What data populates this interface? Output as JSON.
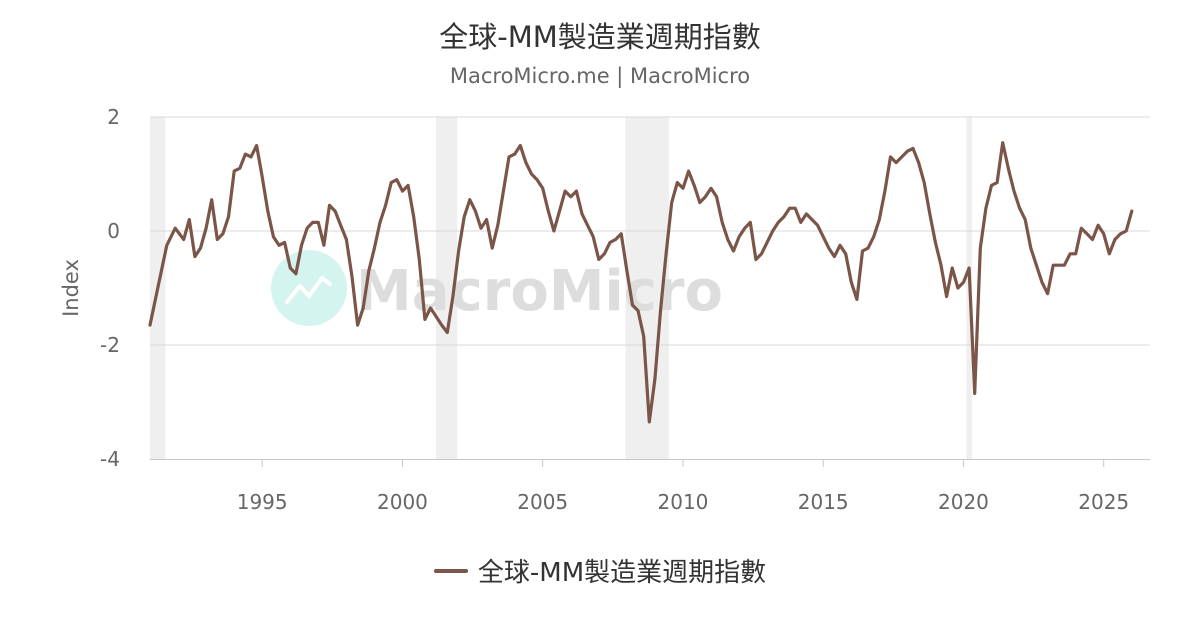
{
  "header": {
    "title": "全球-MM製造業週期指數",
    "subtitle": "MacroMicro.me | MacroMicro"
  },
  "watermark": {
    "text": "MacroMicro",
    "icon": "chart-logo-icon"
  },
  "legend": {
    "label": "全球-MM製造業週期指數"
  },
  "colors": {
    "line": "#7a5548",
    "recession": "#efefef",
    "grid": "#d8d8d8",
    "logo": "#d4f4ef"
  },
  "chart_data": {
    "type": "line",
    "title": "全球-MM製造業週期指數",
    "subtitle": "MacroMicro.me | MacroMicro",
    "ylabel": "Index",
    "xlabel": "",
    "ylim": [
      -4,
      2
    ],
    "yticks": [
      "2",
      "0",
      "-2",
      "-4"
    ],
    "xticks": [
      "1995",
      "2000",
      "2005",
      "2010",
      "2015",
      "2020",
      "2025"
    ],
    "grid": true,
    "legend_position": "bottom",
    "recession_bands": [
      [
        1991.0,
        1991.55
      ],
      [
        2001.2,
        2001.95
      ],
      [
        2007.95,
        2009.5
      ],
      [
        2020.1,
        2020.3
      ]
    ],
    "series": [
      {
        "name": "全球-MM製造業週期指數",
        "points": [
          [
            1991.0,
            -1.65
          ],
          [
            1991.3,
            -0.95
          ],
          [
            1991.6,
            -0.25
          ],
          [
            1991.9,
            0.05
          ],
          [
            1992.2,
            -0.15
          ],
          [
            1992.4,
            0.2
          ],
          [
            1992.6,
            -0.45
          ],
          [
            1992.8,
            -0.3
          ],
          [
            1993.0,
            0.05
          ],
          [
            1993.2,
            0.55
          ],
          [
            1993.4,
            -0.15
          ],
          [
            1993.6,
            -0.05
          ],
          [
            1993.8,
            0.25
          ],
          [
            1994.0,
            1.05
          ],
          [
            1994.2,
            1.1
          ],
          [
            1994.4,
            1.35
          ],
          [
            1994.6,
            1.3
          ],
          [
            1994.8,
            1.5
          ],
          [
            1995.0,
            0.95
          ],
          [
            1995.2,
            0.35
          ],
          [
            1995.4,
            -0.1
          ],
          [
            1995.6,
            -0.25
          ],
          [
            1995.8,
            -0.2
          ],
          [
            1996.0,
            -0.65
          ],
          [
            1996.2,
            -0.75
          ],
          [
            1996.4,
            -0.25
          ],
          [
            1996.6,
            0.05
          ],
          [
            1996.8,
            0.15
          ],
          [
            1997.0,
            0.15
          ],
          [
            1997.2,
            -0.25
          ],
          [
            1997.4,
            0.45
          ],
          [
            1997.6,
            0.35
          ],
          [
            1997.8,
            0.1
          ],
          [
            1998.0,
            -0.15
          ],
          [
            1998.2,
            -0.8
          ],
          [
            1998.4,
            -1.65
          ],
          [
            1998.6,
            -1.35
          ],
          [
            1998.8,
            -0.7
          ],
          [
            1999.0,
            -0.3
          ],
          [
            1999.2,
            0.15
          ],
          [
            1999.4,
            0.45
          ],
          [
            1999.6,
            0.85
          ],
          [
            1999.8,
            0.9
          ],
          [
            2000.0,
            0.7
          ],
          [
            2000.2,
            0.8
          ],
          [
            2000.4,
            0.25
          ],
          [
            2000.6,
            -0.5
          ],
          [
            2000.8,
            -1.55
          ],
          [
            2001.0,
            -1.35
          ],
          [
            2001.2,
            -1.5
          ],
          [
            2001.4,
            -1.65
          ],
          [
            2001.6,
            -1.78
          ],
          [
            2001.8,
            -1.15
          ],
          [
            2002.0,
            -0.35
          ],
          [
            2002.2,
            0.25
          ],
          [
            2002.4,
            0.55
          ],
          [
            2002.6,
            0.35
          ],
          [
            2002.8,
            0.05
          ],
          [
            2003.0,
            0.2
          ],
          [
            2003.2,
            -0.3
          ],
          [
            2003.4,
            0.1
          ],
          [
            2003.6,
            0.7
          ],
          [
            2003.8,
            1.3
          ],
          [
            2004.0,
            1.35
          ],
          [
            2004.2,
            1.5
          ],
          [
            2004.4,
            1.2
          ],
          [
            2004.6,
            1.0
          ],
          [
            2004.8,
            0.9
          ],
          [
            2005.0,
            0.75
          ],
          [
            2005.2,
            0.35
          ],
          [
            2005.4,
            0.0
          ],
          [
            2005.6,
            0.35
          ],
          [
            2005.8,
            0.7
          ],
          [
            2006.0,
            0.6
          ],
          [
            2006.2,
            0.7
          ],
          [
            2006.4,
            0.3
          ],
          [
            2006.6,
            0.1
          ],
          [
            2006.8,
            -0.1
          ],
          [
            2007.0,
            -0.5
          ],
          [
            2007.2,
            -0.4
          ],
          [
            2007.4,
            -0.2
          ],
          [
            2007.6,
            -0.15
          ],
          [
            2007.8,
            -0.05
          ],
          [
            2008.0,
            -0.7
          ],
          [
            2008.2,
            -1.3
          ],
          [
            2008.4,
            -1.4
          ],
          [
            2008.6,
            -1.85
          ],
          [
            2008.8,
            -3.35
          ],
          [
            2009.0,
            -2.6
          ],
          [
            2009.2,
            -1.4
          ],
          [
            2009.4,
            -0.4
          ],
          [
            2009.6,
            0.5
          ],
          [
            2009.8,
            0.85
          ],
          [
            2010.0,
            0.75
          ],
          [
            2010.2,
            1.05
          ],
          [
            2010.4,
            0.8
          ],
          [
            2010.6,
            0.5
          ],
          [
            2010.8,
            0.6
          ],
          [
            2011.0,
            0.75
          ],
          [
            2011.2,
            0.6
          ],
          [
            2011.4,
            0.15
          ],
          [
            2011.6,
            -0.15
          ],
          [
            2011.8,
            -0.35
          ],
          [
            2012.0,
            -0.1
          ],
          [
            2012.2,
            0.05
          ],
          [
            2012.4,
            0.15
          ],
          [
            2012.6,
            -0.5
          ],
          [
            2012.8,
            -0.4
          ],
          [
            2013.0,
            -0.2
          ],
          [
            2013.2,
            0.0
          ],
          [
            2013.4,
            0.15
          ],
          [
            2013.6,
            0.25
          ],
          [
            2013.8,
            0.4
          ],
          [
            2014.0,
            0.4
          ],
          [
            2014.2,
            0.15
          ],
          [
            2014.4,
            0.3
          ],
          [
            2014.6,
            0.2
          ],
          [
            2014.8,
            0.1
          ],
          [
            2015.0,
            -0.1
          ],
          [
            2015.2,
            -0.3
          ],
          [
            2015.4,
            -0.45
          ],
          [
            2015.6,
            -0.25
          ],
          [
            2015.8,
            -0.4
          ],
          [
            2016.0,
            -0.9
          ],
          [
            2016.2,
            -1.2
          ],
          [
            2016.4,
            -0.35
          ],
          [
            2016.6,
            -0.3
          ],
          [
            2016.8,
            -0.1
          ],
          [
            2017.0,
            0.2
          ],
          [
            2017.2,
            0.7
          ],
          [
            2017.4,
            1.3
          ],
          [
            2017.6,
            1.2
          ],
          [
            2017.8,
            1.3
          ],
          [
            2018.0,
            1.4
          ],
          [
            2018.2,
            1.45
          ],
          [
            2018.4,
            1.2
          ],
          [
            2018.6,
            0.85
          ],
          [
            2018.8,
            0.3
          ],
          [
            2019.0,
            -0.2
          ],
          [
            2019.2,
            -0.6
          ],
          [
            2019.4,
            -1.15
          ],
          [
            2019.6,
            -0.65
          ],
          [
            2019.8,
            -1.0
          ],
          [
            2020.0,
            -0.9
          ],
          [
            2020.2,
            -0.65
          ],
          [
            2020.4,
            -2.85
          ],
          [
            2020.6,
            -0.3
          ],
          [
            2020.8,
            0.4
          ],
          [
            2021.0,
            0.8
          ],
          [
            2021.2,
            0.85
          ],
          [
            2021.4,
            1.55
          ],
          [
            2021.6,
            1.1
          ],
          [
            2021.8,
            0.7
          ],
          [
            2022.0,
            0.4
          ],
          [
            2022.2,
            0.2
          ],
          [
            2022.4,
            -0.3
          ],
          [
            2022.6,
            -0.6
          ],
          [
            2022.8,
            -0.9
          ],
          [
            2023.0,
            -1.1
          ],
          [
            2023.2,
            -0.6
          ],
          [
            2023.4,
            -0.6
          ],
          [
            2023.6,
            -0.6
          ],
          [
            2023.8,
            -0.4
          ],
          [
            2024.0,
            -0.4
          ],
          [
            2024.2,
            0.05
          ],
          [
            2024.4,
            -0.05
          ],
          [
            2024.6,
            -0.15
          ],
          [
            2024.8,
            0.1
          ],
          [
            2025.0,
            -0.05
          ],
          [
            2025.2,
            -0.4
          ],
          [
            2025.4,
            -0.15
          ],
          [
            2025.6,
            -0.05
          ],
          [
            2025.8,
            0.0
          ],
          [
            2026.0,
            0.35
          ]
        ]
      }
    ]
  }
}
